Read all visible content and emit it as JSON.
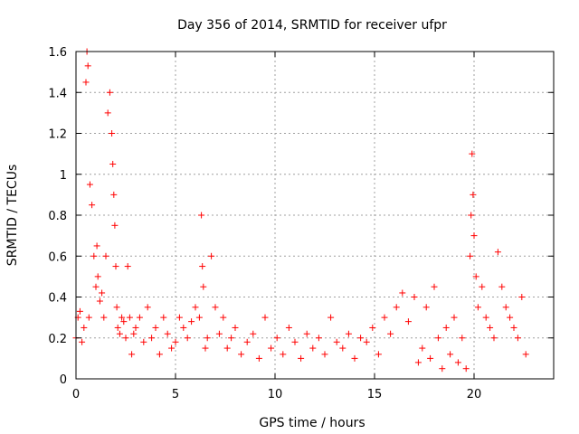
{
  "chart_data": {
    "type": "scatter",
    "title": "Day 356 of 2014, SRMTID for receiver ufpr",
    "xlabel": "GPS time / hours",
    "ylabel": "SRMTID / TECUs",
    "xlim": [
      0,
      24
    ],
    "ylim": [
      0,
      1.6
    ],
    "x_ticks": [
      0,
      5,
      10,
      15,
      20
    ],
    "y_ticks": [
      0,
      0.2,
      0.4,
      0.6,
      0.8,
      1,
      1.2,
      1.4,
      1.6
    ],
    "x_tick_labels": [
      "0",
      "5",
      "10",
      "15",
      "20"
    ],
    "y_tick_labels": [
      "0",
      "0.2",
      "0.4",
      "0.6",
      "0.8",
      "1",
      "1.2",
      "1.4",
      "1.6"
    ],
    "grid": true,
    "marker": "+",
    "color": "#ff0000",
    "series": [
      {
        "name": "SRMTID",
        "x": [
          0.0,
          0.1,
          0.2,
          0.3,
          0.4,
          0.5,
          0.55,
          0.6,
          0.65,
          0.7,
          0.8,
          0.9,
          1.0,
          1.05,
          1.1,
          1.2,
          1.3,
          1.4,
          1.5,
          1.6,
          1.7,
          1.8,
          1.85,
          1.9,
          1.95,
          2.0,
          2.05,
          2.1,
          2.2,
          2.3,
          2.4,
          2.5,
          2.6,
          2.7,
          2.8,
          2.9,
          3.0,
          3.2,
          3.4,
          3.6,
          3.8,
          4.0,
          4.2,
          4.4,
          4.6,
          4.8,
          5.0,
          5.2,
          5.4,
          5.6,
          5.8,
          6.0,
          6.2,
          6.3,
          6.35,
          6.4,
          6.5,
          6.6,
          6.8,
          7.0,
          7.2,
          7.4,
          7.6,
          7.8,
          8.0,
          8.3,
          8.6,
          8.9,
          9.2,
          9.5,
          9.8,
          10.1,
          10.4,
          10.7,
          11.0,
          11.3,
          11.6,
          11.9,
          12.2,
          12.5,
          12.8,
          13.1,
          13.4,
          13.7,
          14.0,
          14.3,
          14.6,
          14.9,
          15.2,
          15.5,
          15.8,
          16.1,
          16.4,
          16.7,
          17.0,
          17.2,
          17.4,
          17.6,
          17.8,
          18.0,
          18.2,
          18.4,
          18.6,
          18.8,
          19.0,
          19.2,
          19.4,
          19.6,
          19.8,
          19.85,
          19.9,
          19.95,
          20.0,
          20.1,
          20.2,
          20.4,
          20.6,
          20.8,
          21.0,
          21.2,
          21.4,
          21.6,
          21.8,
          22.0,
          22.2,
          22.4,
          22.6
        ],
        "y": [
          0.2,
          0.3,
          0.33,
          0.18,
          0.25,
          1.45,
          1.6,
          1.53,
          0.3,
          0.95,
          0.85,
          0.6,
          0.45,
          0.65,
          0.5,
          0.38,
          0.42,
          0.3,
          0.6,
          1.3,
          1.4,
          1.2,
          1.05,
          0.9,
          0.75,
          0.55,
          0.35,
          0.25,
          0.22,
          0.3,
          0.28,
          0.2,
          0.55,
          0.3,
          0.12,
          0.22,
          0.25,
          0.3,
          0.18,
          0.35,
          0.2,
          0.25,
          0.12,
          0.3,
          0.22,
          0.15,
          0.18,
          0.3,
          0.25,
          0.2,
          0.28,
          0.35,
          0.3,
          0.8,
          0.55,
          0.45,
          0.15,
          0.2,
          0.6,
          0.35,
          0.22,
          0.3,
          0.15,
          0.2,
          0.25,
          0.12,
          0.18,
          0.22,
          0.1,
          0.3,
          0.15,
          0.2,
          0.12,
          0.25,
          0.18,
          0.1,
          0.22,
          0.15,
          0.2,
          0.12,
          0.3,
          0.18,
          0.15,
          0.22,
          0.1,
          0.2,
          0.18,
          0.25,
          0.12,
          0.3,
          0.22,
          0.35,
          0.42,
          0.28,
          0.4,
          0.08,
          0.15,
          0.35,
          0.1,
          0.45,
          0.2,
          0.05,
          0.25,
          0.12,
          0.3,
          0.08,
          0.2,
          0.05,
          0.6,
          0.8,
          1.1,
          0.9,
          0.7,
          0.5,
          0.35,
          0.45,
          0.3,
          0.25,
          0.2,
          0.62,
          0.45,
          0.35,
          0.3,
          0.25,
          0.2,
          0.4,
          0.12
        ]
      }
    ]
  }
}
